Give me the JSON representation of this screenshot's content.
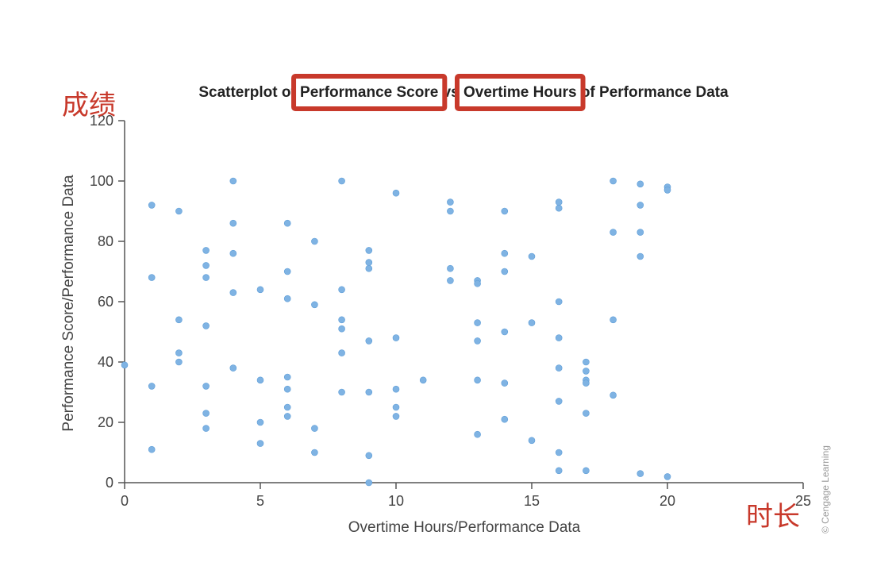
{
  "chart_data": {
    "type": "scatter",
    "title": "Scatterplot of Performance Score vs Overtime Hours of Performance Data",
    "xlabel": "Overtime Hours/Performance Data",
    "ylabel": "Performance Score/Performance Data",
    "xlim": [
      0,
      25
    ],
    "ylim": [
      0,
      120
    ],
    "xticks": [
      0,
      5,
      10,
      15,
      20,
      25
    ],
    "yticks": [
      0,
      20,
      40,
      60,
      80,
      100,
      120
    ],
    "grid": false,
    "point_color": "#7fb3e3",
    "points": [
      [
        0,
        39
      ],
      [
        1,
        92
      ],
      [
        1,
        68
      ],
      [
        1,
        32
      ],
      [
        1,
        11
      ],
      [
        2,
        90
      ],
      [
        2,
        54
      ],
      [
        2,
        43
      ],
      [
        2,
        40
      ],
      [
        3,
        77
      ],
      [
        3,
        72
      ],
      [
        3,
        68
      ],
      [
        3,
        52
      ],
      [
        3,
        32
      ],
      [
        3,
        23
      ],
      [
        3,
        18
      ],
      [
        4,
        100
      ],
      [
        4,
        86
      ],
      [
        4,
        76
      ],
      [
        4,
        63
      ],
      [
        4,
        38
      ],
      [
        5,
        64
      ],
      [
        5,
        34
      ],
      [
        5,
        20
      ],
      [
        5,
        13
      ],
      [
        6,
        86
      ],
      [
        6,
        70
      ],
      [
        6,
        61
      ],
      [
        6,
        35
      ],
      [
        6,
        31
      ],
      [
        6,
        25
      ],
      [
        6,
        22
      ],
      [
        7,
        80
      ],
      [
        7,
        59
      ],
      [
        7,
        18
      ],
      [
        7,
        10
      ],
      [
        8,
        100
      ],
      [
        8,
        64
      ],
      [
        8,
        54
      ],
      [
        8,
        51
      ],
      [
        8,
        43
      ],
      [
        8,
        30
      ],
      [
        9,
        77
      ],
      [
        9,
        73
      ],
      [
        9,
        71
      ],
      [
        9,
        47
      ],
      [
        9,
        30
      ],
      [
        9,
        9
      ],
      [
        9,
        0
      ],
      [
        10,
        96
      ],
      [
        10,
        48
      ],
      [
        10,
        31
      ],
      [
        10,
        25
      ],
      [
        10,
        22
      ],
      [
        11,
        34
      ],
      [
        12,
        93
      ],
      [
        12,
        90
      ],
      [
        12,
        71
      ],
      [
        12,
        67
      ],
      [
        13,
        67
      ],
      [
        13,
        66
      ],
      [
        13,
        53
      ],
      [
        13,
        47
      ],
      [
        13,
        34
      ],
      [
        13,
        16
      ],
      [
        14,
        90
      ],
      [
        14,
        76
      ],
      [
        14,
        70
      ],
      [
        14,
        50
      ],
      [
        14,
        33
      ],
      [
        14,
        21
      ],
      [
        15,
        75
      ],
      [
        15,
        53
      ],
      [
        15,
        14
      ],
      [
        16,
        93
      ],
      [
        16,
        91
      ],
      [
        16,
        60
      ],
      [
        16,
        48
      ],
      [
        16,
        38
      ],
      [
        16,
        27
      ],
      [
        16,
        10
      ],
      [
        16,
        4
      ],
      [
        17,
        40
      ],
      [
        17,
        37
      ],
      [
        17,
        34
      ],
      [
        17,
        33
      ],
      [
        17,
        23
      ],
      [
        17,
        4
      ],
      [
        18,
        100
      ],
      [
        18,
        83
      ],
      [
        18,
        54
      ],
      [
        18,
        29
      ],
      [
        19,
        99
      ],
      [
        19,
        92
      ],
      [
        19,
        83
      ],
      [
        19,
        75
      ],
      [
        19,
        3
      ],
      [
        20,
        98
      ],
      [
        20,
        97
      ],
      [
        20,
        2
      ]
    ],
    "highlight_color": "#c8392b",
    "highlights": [
      "Performance Score",
      "Overtime Hours"
    ],
    "annotations": {
      "y_axis_note": "成绩",
      "x_axis_note": "时长"
    },
    "watermark": "© Cengage Learning"
  }
}
